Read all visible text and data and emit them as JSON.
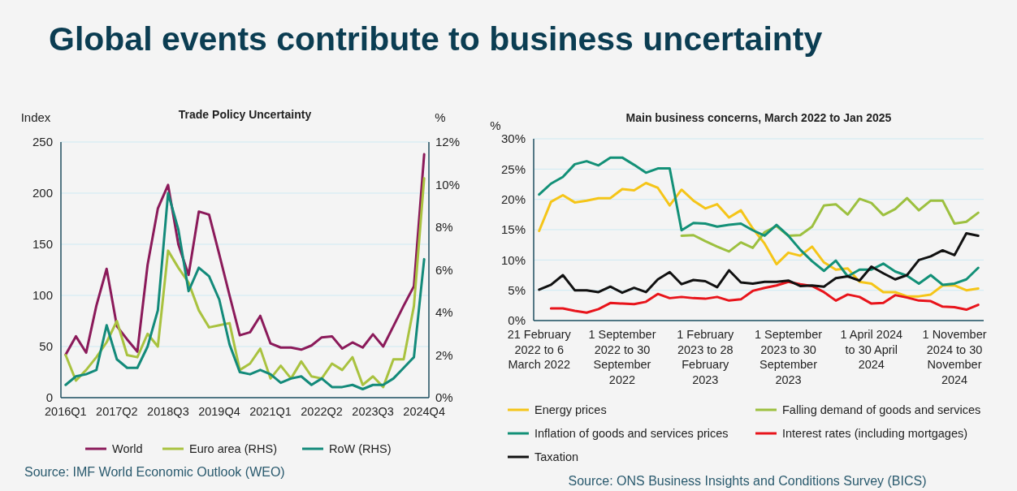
{
  "chart_data": [
    {
      "type": "line",
      "title": "Trade Policy Uncertainty",
      "ylabel": "Index",
      "y2label": "%",
      "annotations": [
        "Global events contribute to business uncertainty",
        "Source: IMF World Economic Outlook (WEO)"
      ],
      "categories": [
        "2016Q1",
        null,
        null,
        null,
        null,
        "2017Q2",
        null,
        null,
        null,
        null,
        "2018Q3",
        null,
        null,
        null,
        null,
        "2019Q4",
        null,
        null,
        null,
        null,
        "2021Q1",
        null,
        null,
        null,
        null,
        "2022Q2",
        null,
        null,
        null,
        null,
        "2023Q3",
        null,
        null,
        null,
        null,
        "2024Q4"
      ],
      "ylim": [
        0,
        250
      ],
      "yticks": [
        0,
        50,
        100,
        150,
        200,
        250
      ],
      "y2lim": [
        0,
        12
      ],
      "y2ticks": [
        {
          "value": 0,
          "label": "0%"
        },
        {
          "value": 2,
          "label": "2%"
        },
        {
          "value": 4,
          "label": "4%"
        },
        {
          "value": 6,
          "label": "6%"
        },
        {
          "value": 8,
          "label": "8%"
        },
        {
          "value": 10,
          "label": "10%"
        },
        {
          "value": 12,
          "label": "12%"
        }
      ],
      "grid": "y",
      "legend": "bottom",
      "series": [
        {
          "name": "World",
          "color": "#8b1a5a",
          "values": [
            42,
            60,
            44,
            90,
            126,
            70,
            57,
            45,
            130,
            185,
            208,
            150,
            120,
            182,
            179,
            140,
            100,
            61,
            64,
            80,
            53,
            49,
            49,
            47,
            51,
            59,
            60,
            48,
            54,
            49,
            62,
            50,
            70,
            90,
            109,
            238
          ]
        },
        {
          "name": "Euro area (RHS)",
          "color": "#a9c23f",
          "axis": "y2",
          "values": [
            2.0,
            0.8,
            1.3,
            1.9,
            2.6,
            3.6,
            2.0,
            1.9,
            3.0,
            2.4,
            6.9,
            6.1,
            5.4,
            4.1,
            3.3,
            3.4,
            3.5,
            1.3,
            1.6,
            2.3,
            0.9,
            1.5,
            0.9,
            1.7,
            1.0,
            0.9,
            1.6,
            1.3,
            1.9,
            0.6,
            1.0,
            0.5,
            1.8,
            1.8,
            4.3,
            10.3
          ]
        },
        {
          "name": "RoW (RHS)",
          "color": "#138a7a",
          "axis": "y2",
          "values": [
            0.6,
            1.0,
            1.1,
            1.3,
            3.4,
            1.8,
            1.4,
            1.4,
            2.4,
            4.1,
            9.6,
            7.9,
            5.0,
            6.1,
            5.7,
            4.6,
            2.5,
            1.2,
            1.1,
            1.3,
            1.1,
            0.7,
            0.9,
            1.0,
            0.6,
            0.9,
            0.5,
            0.5,
            0.6,
            0.4,
            0.6,
            0.6,
            0.9,
            1.4,
            1.9,
            6.5
          ]
        }
      ]
    },
    {
      "type": "line",
      "title": "Main business concerns, March 2022 to Jan 2025",
      "ylabel": "%",
      "annotations": [
        "Source: ONS Business Insights and Conditions Survey (BICS)"
      ],
      "categories": [
        "21 February 2022 to 6 March 2022",
        null,
        null,
        null,
        null,
        null,
        null,
        "1 September 2022 to 30 September 2022",
        null,
        null,
        null,
        null,
        null,
        null,
        "1 February 2023 to 28 February 2023",
        null,
        null,
        null,
        null,
        null,
        null,
        "1 September 2023 to 30 September 2023",
        null,
        null,
        null,
        null,
        null,
        null,
        "1 April 2024 to 30 April 2024",
        null,
        null,
        null,
        null,
        null,
        null,
        "1 November 2024 to 30 November 2024",
        null,
        null
      ],
      "ylim": [
        0,
        30
      ],
      "yticks": [
        {
          "value": 0,
          "label": "0%"
        },
        {
          "value": 5,
          "label": "5%"
        },
        {
          "value": 10,
          "label": "10%"
        },
        {
          "value": 15,
          "label": "15%"
        },
        {
          "value": 20,
          "label": "20%"
        },
        {
          "value": 25,
          "label": "25%"
        },
        {
          "value": 30,
          "label": "30%"
        }
      ],
      "grid": "y",
      "legend": "bottom",
      "series": [
        {
          "name": "Energy prices",
          "color": "#f5c518",
          "values": [
            14.8,
            19.6,
            20.7,
            19.5,
            19.8,
            20.2,
            20.2,
            21.7,
            21.5,
            22.7,
            21.9,
            19.0,
            21.6,
            19.8,
            18.5,
            19.2,
            17.0,
            18.2,
            15.2,
            12.7,
            9.3,
            11.2,
            10.7,
            12.2,
            9.6,
            8.4,
            8.6,
            6.4,
            6.1,
            4.7,
            4.7,
            4.0,
            4.0,
            4.3,
            5.8,
            5.8,
            5.0,
            5.3
          ]
        },
        {
          "name": "Falling demand of goods and services",
          "color": "#9dc03f",
          "values": [
            null,
            null,
            null,
            null,
            null,
            null,
            null,
            null,
            null,
            null,
            null,
            null,
            14.0,
            14.1,
            13.1,
            12.2,
            11.4,
            12.9,
            12.0,
            14.6,
            15.6,
            14.0,
            14.1,
            15.5,
            19.0,
            19.2,
            17.5,
            20.1,
            19.4,
            17.4,
            18.4,
            20.2,
            18.2,
            19.8,
            19.8,
            16.0,
            16.3,
            17.8
          ]
        },
        {
          "name": "Inflation of goods and services prices",
          "color": "#129077",
          "values": [
            20.8,
            22.6,
            23.7,
            25.8,
            26.3,
            25.6,
            26.9,
            26.9,
            25.7,
            24.4,
            25.1,
            25.1,
            14.9,
            16.1,
            16.0,
            15.5,
            15.8,
            16.0,
            14.9,
            14.0,
            15.8,
            14.0,
            11.7,
            9.8,
            8.2,
            9.9,
            7.3,
            8.4,
            8.4,
            9.4,
            8.1,
            7.4,
            6.1,
            7.5,
            5.9,
            6.1,
            6.8,
            8.7
          ]
        },
        {
          "name": "Interest rates (including mortgages)",
          "color": "#e8141b",
          "values": [
            null,
            2.0,
            2.0,
            1.6,
            1.3,
            1.9,
            2.9,
            2.8,
            2.7,
            3.1,
            4.4,
            3.7,
            3.9,
            3.7,
            3.6,
            3.9,
            3.3,
            3.5,
            4.9,
            5.4,
            5.8,
            6.4,
            6.0,
            5.7,
            4.7,
            3.3,
            4.3,
            3.9,
            2.8,
            2.9,
            4.2,
            3.8,
            3.3,
            3.2,
            2.3,
            2.2,
            1.8,
            2.6
          ]
        },
        {
          "name": "Taxation",
          "color": "#111111",
          "values": [
            5.1,
            5.9,
            7.5,
            5.0,
            5.0,
            4.7,
            5.6,
            4.6,
            5.4,
            4.7,
            6.8,
            8.0,
            6.0,
            6.7,
            6.5,
            5.5,
            8.3,
            6.3,
            6.1,
            6.4,
            6.4,
            6.6,
            5.7,
            5.8,
            5.6,
            7.0,
            7.3,
            6.6,
            8.9,
            7.8,
            6.8,
            7.5,
            10.0,
            10.6,
            11.6,
            10.8,
            14.4,
            14.0
          ]
        }
      ]
    }
  ]
}
